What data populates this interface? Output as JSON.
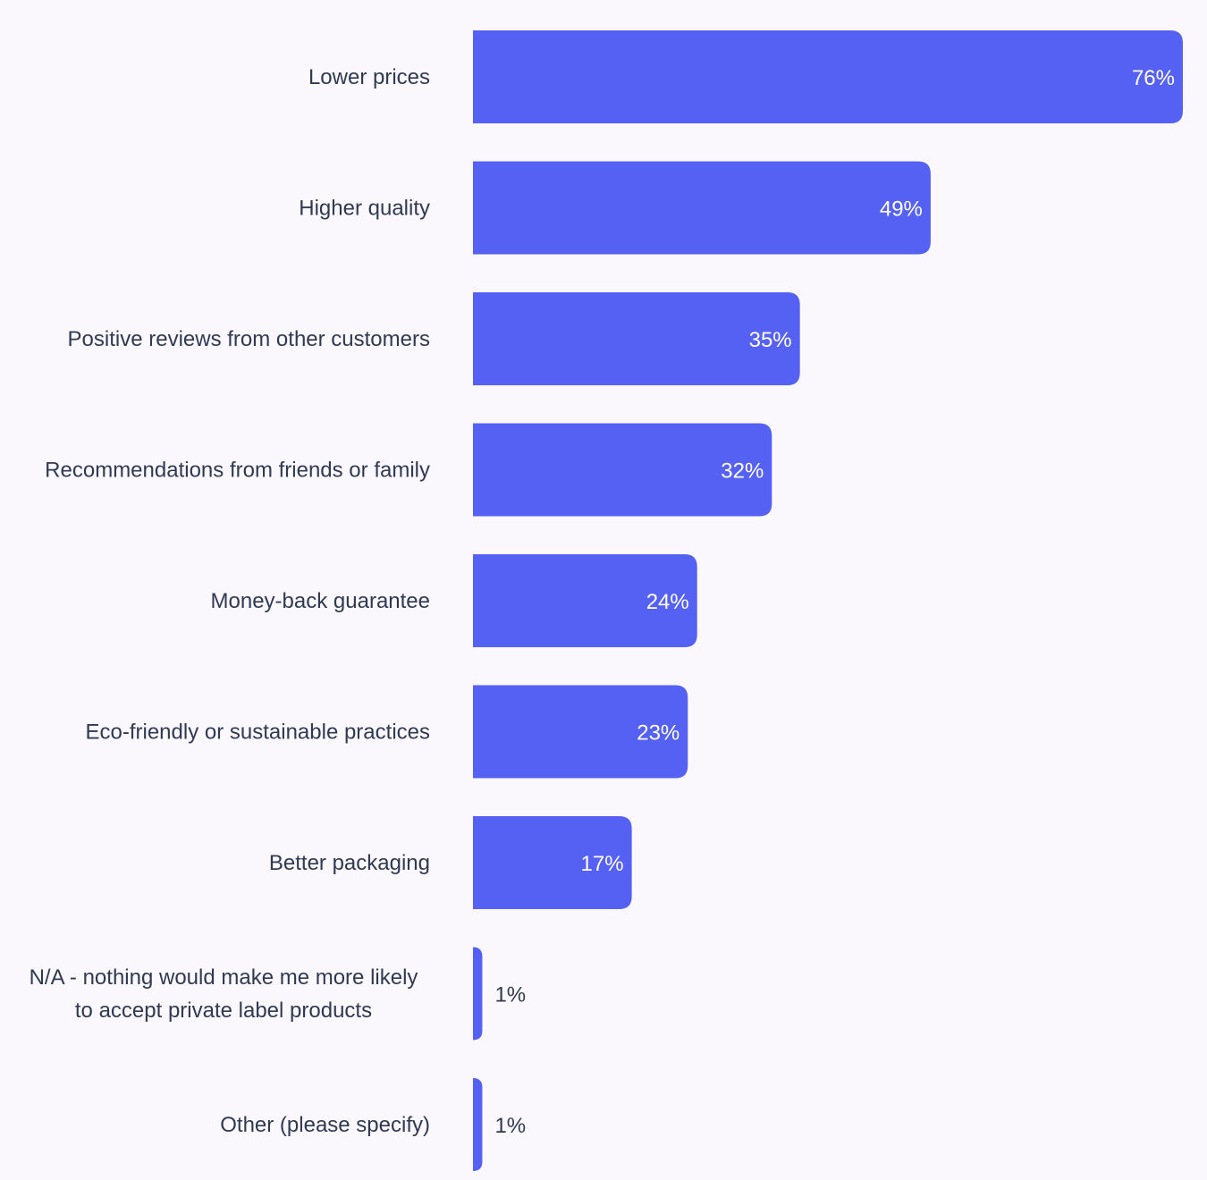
{
  "colors": {
    "bar": "#5561f2",
    "label_text": "#2f3a52",
    "value_inside_text": "#ffffff",
    "background": "#fbf8fd"
  },
  "chart_data": {
    "type": "bar",
    "orientation": "horizontal",
    "title": "",
    "xlabel": "",
    "ylabel": "",
    "grid": false,
    "legend": "none",
    "xlim": [
      0,
      76
    ],
    "unit": "%",
    "categories": [
      "Lower prices",
      "Higher quality",
      "Positive reviews from other customers",
      "Recommendations from friends or family",
      "Money-back guarantee",
      "Eco-friendly or sustainable practices",
      "Better packaging",
      "N/A - nothing would make me more likely to accept private label products",
      "Other (please specify)"
    ],
    "category_lines": [
      [
        "Lower prices"
      ],
      [
        "Higher quality"
      ],
      [
        "Positive reviews from other customers"
      ],
      [
        "Recommendations from friends or family"
      ],
      [
        "Money-back guarantee"
      ],
      [
        "Eco-friendly or sustainable practices"
      ],
      [
        "Better packaging"
      ],
      [
        "N/A - nothing would make me more likely",
        "to accept private label products"
      ],
      [
        "Other (please specify)"
      ]
    ],
    "values": [
      76,
      49,
      35,
      32,
      24,
      23,
      17,
      1,
      1
    ],
    "value_labels": [
      "76%",
      "49%",
      "35%",
      "32%",
      "24%",
      "23%",
      "17%",
      "1%",
      "1%"
    ]
  }
}
